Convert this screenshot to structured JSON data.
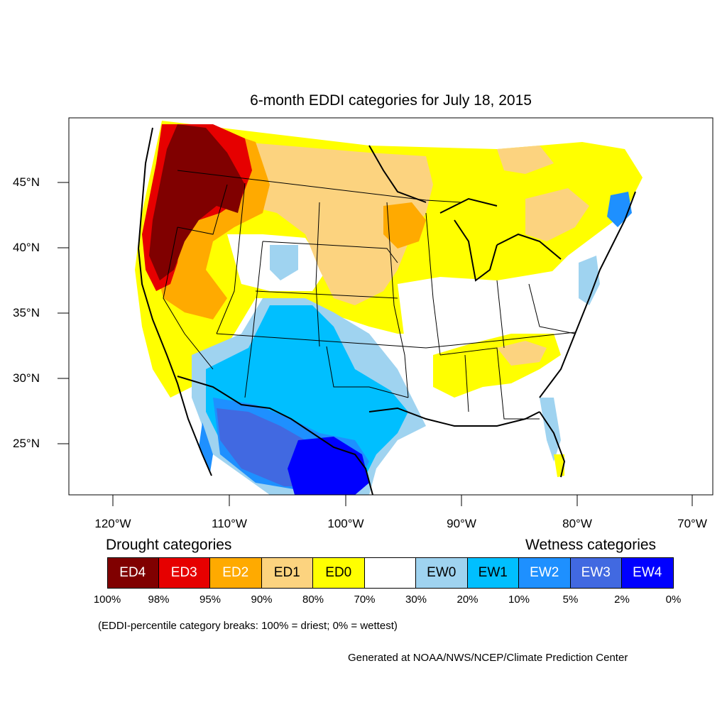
{
  "map": {
    "title": "6-month EDDI categories for July 18, 2015",
    "latitude_labels": [
      "45°N",
      "40°N",
      "35°N",
      "30°N",
      "25°N"
    ],
    "longitude_labels": [
      "120°W",
      "110°W",
      "100°W",
      "90°W",
      "80°W",
      "70°W"
    ]
  },
  "legend": {
    "drought_heading": "Drought categories",
    "wetness_heading": "Wetness categories",
    "categories": [
      {
        "label": "ED4",
        "color": "#800000",
        "text_color": "#ffffff"
      },
      {
        "label": "ED3",
        "color": "#e60000",
        "text_color": "#ffffff"
      },
      {
        "label": "ED2",
        "color": "#ffaa00",
        "text_color": "#ffffff"
      },
      {
        "label": "ED1",
        "color": "#fcd37f",
        "text_color": "#000000"
      },
      {
        "label": "ED0",
        "color": "#ffff00",
        "text_color": "#000000"
      },
      {
        "label": "",
        "color": "#ffffff",
        "text_color": "#000000"
      },
      {
        "label": "EW0",
        "color": "#9fd3f0",
        "text_color": "#000000"
      },
      {
        "label": "EW1",
        "color": "#00bfff",
        "text_color": "#000000"
      },
      {
        "label": "EW2",
        "color": "#1e90ff",
        "text_color": "#ffffff"
      },
      {
        "label": "EW3",
        "color": "#4169e1",
        "text_color": "#ffffff"
      },
      {
        "label": "EW4",
        "color": "#0000ff",
        "text_color": "#ffffff"
      }
    ],
    "breaks": [
      "100%",
      "98%",
      "95%",
      "90%",
      "80%",
      "70%",
      "30%",
      "20%",
      "10%",
      "5%",
      "2%",
      "0%"
    ],
    "note": "(EDDI-percentile category breaks: 100% = driest; 0% = wettest)"
  },
  "credit": "Generated at NOAA/NWS/NCEP/Climate Prediction Center"
}
